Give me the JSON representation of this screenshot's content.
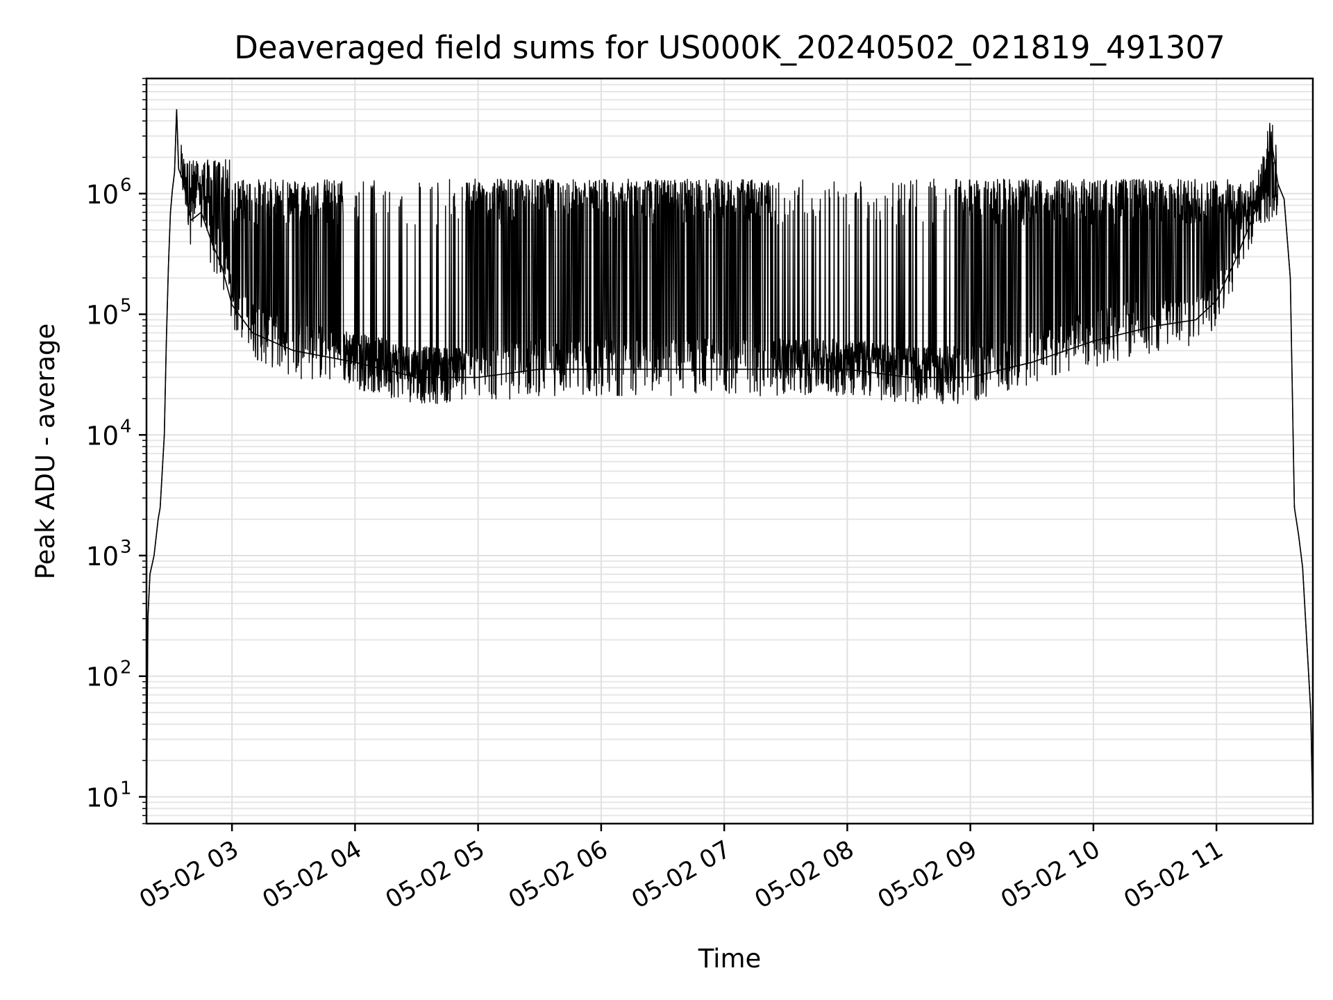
{
  "chart_data": {
    "type": "line",
    "title": "Deaveraged field sums for US000K_20240502_021819_491307",
    "xlabel": "Time",
    "ylabel": "Peak ADU - average",
    "x_range": [
      "2024-05-02 02:18:19",
      "2024-05-02 11:47:00"
    ],
    "y_scale": "log",
    "ylim": [
      6,
      9000000
    ],
    "grid": true,
    "x_ticks": [
      {
        "value": "2024-05-02 03:00",
        "label": "05-02 03"
      },
      {
        "value": "2024-05-02 04:00",
        "label": "05-02 04"
      },
      {
        "value": "2024-05-02 05:00",
        "label": "05-02 05"
      },
      {
        "value": "2024-05-02 06:00",
        "label": "05-02 06"
      },
      {
        "value": "2024-05-02 07:00",
        "label": "05-02 07"
      },
      {
        "value": "2024-05-02 08:00",
        "label": "05-02 08"
      },
      {
        "value": "2024-05-02 09:00",
        "label": "05-02 09"
      },
      {
        "value": "2024-05-02 10:00",
        "label": "05-02 10"
      },
      {
        "value": "2024-05-02 11:00",
        "label": "05-02 11"
      }
    ],
    "y_ticks": [
      {
        "value": 10,
        "label": "10",
        "exp": "1"
      },
      {
        "value": 100,
        "label": "10",
        "exp": "2"
      },
      {
        "value": 1000,
        "label": "10",
        "exp": "3"
      },
      {
        "value": 10000,
        "label": "10",
        "exp": "4"
      },
      {
        "value": 100000,
        "label": "10",
        "exp": "5"
      },
      {
        "value": 1000000,
        "label": "10",
        "exp": "6"
      }
    ],
    "series": [
      {
        "color": "#000000",
        "points": [
          [
            "02:18:19",
            6
          ],
          [
            "02:19:00",
            300
          ],
          [
            "02:20:00",
            700
          ],
          [
            "02:22:00",
            1000
          ],
          [
            "02:24:00",
            2000
          ],
          [
            "02:25:00",
            2500
          ],
          [
            "02:26:00",
            5000
          ],
          [
            "02:27:00",
            10000
          ],
          [
            "02:28:00",
            60000
          ],
          [
            "02:29:00",
            250000
          ],
          [
            "02:30:00",
            700000
          ],
          [
            "02:31:00",
            1100000
          ],
          [
            "02:32:00",
            1500000
          ],
          [
            "02:33:00",
            5000000
          ],
          [
            "02:34:00",
            1600000
          ],
          [
            "02:36:00",
            1300000
          ],
          [
            "02:38:00",
            900000
          ],
          [
            "02:40:00",
            600000
          ],
          [
            "02:45:00",
            700000
          ],
          [
            "02:50:00",
            400000
          ],
          [
            "02:55:00",
            250000
          ],
          [
            "03:00:00",
            120000
          ],
          [
            "03:10:00",
            70000
          ],
          [
            "03:30:00",
            50000
          ],
          [
            "04:00:00",
            40000
          ],
          [
            "04:30:00",
            30000
          ],
          [
            "05:00:00",
            30000
          ],
          [
            "05:30:00",
            35000
          ],
          [
            "06:00:00",
            35000
          ],
          [
            "06:30:00",
            35000
          ],
          [
            "07:00:00",
            35000
          ],
          [
            "07:30:00",
            35000
          ],
          [
            "08:00:00",
            35000
          ],
          [
            "08:30:00",
            30000
          ],
          [
            "09:00:00",
            30000
          ],
          [
            "09:30:00",
            40000
          ],
          [
            "10:00:00",
            60000
          ],
          [
            "10:30:00",
            80000
          ],
          [
            "10:50:00",
            90000
          ],
          [
            "11:00:00",
            130000
          ],
          [
            "11:10:00",
            300000
          ],
          [
            "11:20:00",
            800000
          ],
          [
            "11:27:00",
            2600000
          ],
          [
            "11:30:00",
            1200000
          ],
          [
            "11:33:00",
            900000
          ],
          [
            "11:36:00",
            200000
          ],
          [
            "11:38:00",
            2500
          ],
          [
            "11:40:00",
            1500
          ],
          [
            "11:42:00",
            800
          ],
          [
            "11:44:00",
            200
          ],
          [
            "11:46:00",
            50
          ],
          [
            "11:47:00",
            6
          ]
        ]
      }
    ]
  }
}
